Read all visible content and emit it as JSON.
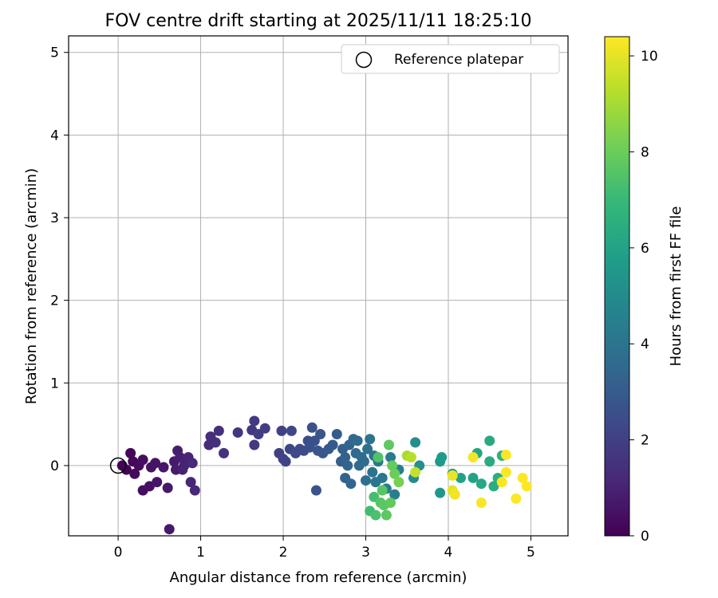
{
  "chart_data": {
    "type": "scatter",
    "title": "FOV centre drift starting at 2025/11/11 18:25:10",
    "xlabel": "Angular distance from reference (arcmin)",
    "ylabel": "Rotation from reference (arcmin)",
    "xlim": [
      -0.6,
      5.45
    ],
    "ylim": [
      -0.85,
      5.2
    ],
    "xticks": [
      "0",
      "1",
      "2",
      "3",
      "4",
      "5"
    ],
    "xtick_values": [
      0,
      1,
      2,
      3,
      4,
      5
    ],
    "yticks": [
      "0",
      "1",
      "2",
      "3",
      "4",
      "5"
    ],
    "ytick_values": [
      0,
      1,
      2,
      3,
      4,
      5
    ],
    "grid": true,
    "legend": {
      "placement": "top-right",
      "entries": [
        "Reference platepar"
      ]
    },
    "colorbar": {
      "label": "Hours from first FF file",
      "range": [
        0,
        10.4
      ],
      "ticks": [
        "0",
        "2",
        "4",
        "6",
        "8",
        "10"
      ],
      "tick_values": [
        0,
        2,
        4,
        6,
        8,
        10
      ],
      "colormap": [
        "#440154",
        "#482878",
        "#3e4989",
        "#31688e",
        "#26828e",
        "#1f9e89",
        "#35b779",
        "#6ece58",
        "#b5de2b",
        "#fde725"
      ]
    },
    "reference_point": {
      "x": 0,
      "y": 0
    },
    "points_columns": [
      "x",
      "y",
      "hours"
    ],
    "points": [
      [
        0.05,
        0.0,
        0.05
      ],
      [
        0.1,
        -0.05,
        0.1
      ],
      [
        0.15,
        0.15,
        0.15
      ],
      [
        0.18,
        0.05,
        0.2
      ],
      [
        0.2,
        -0.1,
        0.25
      ],
      [
        0.25,
        0.0,
        0.3
      ],
      [
        0.3,
        0.07,
        0.35
      ],
      [
        0.3,
        -0.3,
        0.4
      ],
      [
        0.38,
        -0.25,
        0.45
      ],
      [
        0.4,
        -0.02,
        0.5
      ],
      [
        0.45,
        0.03,
        0.55
      ],
      [
        0.47,
        -0.2,
        0.6
      ],
      [
        0.55,
        -0.02,
        0.65
      ],
      [
        0.6,
        -0.27,
        0.7
      ],
      [
        0.62,
        -0.77,
        0.72
      ],
      [
        0.68,
        0.05,
        0.75
      ],
      [
        0.7,
        -0.05,
        0.8
      ],
      [
        0.72,
        0.18,
        0.85
      ],
      [
        0.75,
        0.1,
        0.9
      ],
      [
        0.78,
        -0.05,
        0.95
      ],
      [
        0.8,
        0.0,
        1.0
      ],
      [
        0.85,
        0.1,
        1.05
      ],
      [
        0.88,
        -0.2,
        1.1
      ],
      [
        0.9,
        0.03,
        1.15
      ],
      [
        0.93,
        -0.3,
        1.2
      ],
      [
        1.1,
        0.25,
        1.3
      ],
      [
        1.12,
        0.35,
        1.35
      ],
      [
        1.18,
        0.28,
        1.4
      ],
      [
        1.22,
        0.42,
        1.45
      ],
      [
        1.28,
        0.15,
        1.5
      ],
      [
        1.45,
        0.4,
        1.6
      ],
      [
        1.62,
        0.43,
        1.7
      ],
      [
        1.65,
        0.25,
        1.75
      ],
      [
        1.65,
        0.54,
        1.8
      ],
      [
        1.7,
        0.38,
        1.85
      ],
      [
        1.78,
        0.45,
        1.9
      ],
      [
        1.95,
        0.15,
        2.0
      ],
      [
        1.98,
        0.42,
        2.05
      ],
      [
        2.0,
        0.08,
        2.1
      ],
      [
        2.03,
        0.05,
        2.15
      ],
      [
        2.08,
        0.2,
        2.2
      ],
      [
        2.1,
        0.42,
        2.25
      ],
      [
        2.15,
        0.15,
        2.3
      ],
      [
        2.2,
        0.2,
        2.35
      ],
      [
        2.25,
        0.18,
        2.4
      ],
      [
        2.3,
        0.3,
        2.5
      ],
      [
        2.32,
        0.22,
        2.55
      ],
      [
        2.35,
        0.46,
        2.6
      ],
      [
        2.38,
        0.3,
        2.65
      ],
      [
        2.4,
        -0.3,
        2.7
      ],
      [
        2.42,
        0.18,
        2.75
      ],
      [
        2.45,
        0.38,
        2.8
      ],
      [
        2.48,
        0.15,
        2.85
      ],
      [
        2.55,
        0.2,
        2.9
      ],
      [
        2.6,
        0.25,
        2.95
      ],
      [
        2.65,
        0.38,
        3.0
      ],
      [
        2.7,
        0.05,
        3.1
      ],
      [
        2.72,
        0.2,
        3.15
      ],
      [
        2.75,
        0.1,
        3.2
      ],
      [
        2.75,
        -0.15,
        3.25
      ],
      [
        2.78,
        0.0,
        3.3
      ],
      [
        2.8,
        0.25,
        3.35
      ],
      [
        2.82,
        -0.22,
        3.4
      ],
      [
        2.85,
        0.32,
        3.45
      ],
      [
        2.88,
        0.15,
        3.5
      ],
      [
        2.9,
        0.3,
        3.55
      ],
      [
        2.92,
        0.0,
        3.6
      ],
      [
        2.95,
        0.1,
        3.65
      ],
      [
        2.98,
        0.05,
        3.7
      ],
      [
        3.0,
        -0.18,
        3.8
      ],
      [
        3.02,
        0.2,
        3.85
      ],
      [
        3.05,
        0.32,
        3.9
      ],
      [
        3.08,
        -0.08,
        3.95
      ],
      [
        3.1,
        0.12,
        4.0
      ],
      [
        3.12,
        -0.2,
        4.05
      ],
      [
        3.15,
        0.05,
        4.1
      ],
      [
        3.2,
        -0.15,
        4.15
      ],
      [
        3.25,
        -0.28,
        4.2
      ],
      [
        3.3,
        0.1,
        4.3
      ],
      [
        3.35,
        -0.35,
        4.4
      ],
      [
        3.4,
        -0.05,
        4.5
      ],
      [
        3.58,
        -0.15,
        5.0
      ],
      [
        3.6,
        0.28,
        5.1
      ],
      [
        3.65,
        0.0,
        5.2
      ],
      [
        3.9,
        -0.33,
        5.5
      ],
      [
        3.9,
        0.05,
        5.6
      ],
      [
        3.92,
        0.1,
        5.7
      ],
      [
        4.05,
        -0.1,
        5.8
      ],
      [
        4.15,
        -0.15,
        5.9
      ],
      [
        4.3,
        -0.15,
        6.0
      ],
      [
        4.35,
        0.15,
        6.1
      ],
      [
        4.4,
        -0.22,
        6.2
      ],
      [
        4.5,
        0.3,
        6.3
      ],
      [
        4.5,
        0.05,
        6.35
      ],
      [
        4.55,
        -0.25,
        6.4
      ],
      [
        4.6,
        -0.15,
        6.5
      ],
      [
        4.65,
        0.12,
        6.6
      ],
      [
        3.05,
        -0.55,
        7.2
      ],
      [
        3.1,
        -0.38,
        7.3
      ],
      [
        3.12,
        -0.6,
        7.4
      ],
      [
        3.15,
        0.1,
        7.5
      ],
      [
        3.18,
        -0.45,
        7.6
      ],
      [
        3.2,
        -0.3,
        7.65
      ],
      [
        3.22,
        -0.48,
        7.7
      ],
      [
        3.25,
        -0.6,
        7.75
      ],
      [
        3.28,
        0.25,
        7.8
      ],
      [
        3.3,
        -0.45,
        7.85
      ],
      [
        3.32,
        0.0,
        7.9
      ],
      [
        3.35,
        -0.1,
        8.0
      ],
      [
        3.4,
        -0.2,
        8.2
      ],
      [
        3.5,
        0.12,
        9.0
      ],
      [
        3.55,
        0.1,
        9.3
      ],
      [
        3.6,
        -0.08,
        9.5
      ],
      [
        4.05,
        -0.3,
        10.0
      ],
      [
        4.05,
        -0.12,
        10.1
      ],
      [
        4.08,
        -0.35,
        10.2
      ],
      [
        4.3,
        0.1,
        10.25
      ],
      [
        4.4,
        -0.45,
        10.3
      ],
      [
        4.65,
        -0.2,
        10.32
      ],
      [
        4.7,
        0.13,
        10.35
      ],
      [
        4.7,
        -0.08,
        10.36
      ],
      [
        4.82,
        -0.4,
        10.38
      ],
      [
        4.9,
        -0.15,
        10.39
      ],
      [
        4.95,
        -0.25,
        10.4
      ]
    ]
  }
}
